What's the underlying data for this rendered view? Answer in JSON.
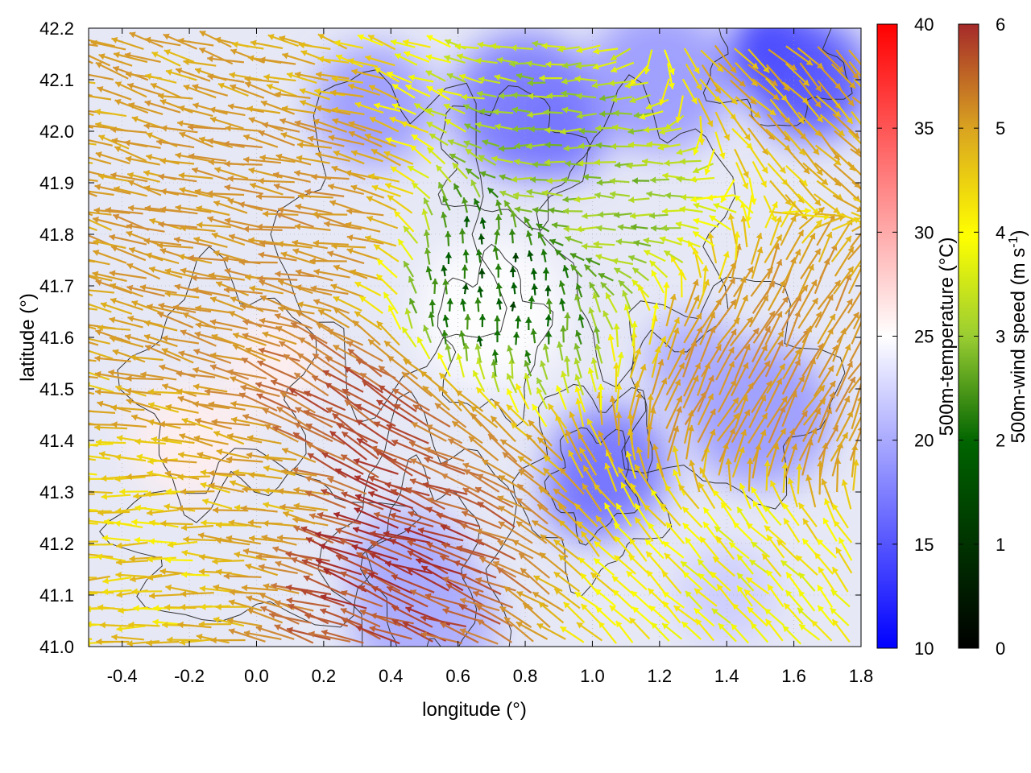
{
  "chart_data": {
    "type": "heatmap",
    "subtype": "temperature field with wind vectors and contours",
    "xlabel": "longitude (°)",
    "ylabel": "latitude (°)",
    "xlim": [
      -0.5,
      1.8
    ],
    "ylim": [
      41.0,
      42.2
    ],
    "xticks": [
      "-0.4",
      "-0.2",
      "0.0",
      "0.2",
      "0.4",
      "0.6",
      "0.8",
      "1.0",
      "1.2",
      "1.4",
      "1.6",
      "1.8"
    ],
    "xtick_values": [
      -0.4,
      -0.2,
      0.0,
      0.2,
      0.4,
      0.6,
      0.8,
      1.0,
      1.2,
      1.4,
      1.6,
      1.8
    ],
    "yticks": [
      "41.0",
      "41.1",
      "41.2",
      "41.3",
      "41.4",
      "41.5",
      "41.6",
      "41.7",
      "41.8",
      "41.9",
      "42.0",
      "42.1",
      "42.2"
    ],
    "ytick_values": [
      41.0,
      41.1,
      41.2,
      41.3,
      41.4,
      41.5,
      41.6,
      41.7,
      41.8,
      41.9,
      42.0,
      42.1,
      42.2
    ],
    "grid": true,
    "temperature_colorbar": {
      "label": "500m-temperature (°C)",
      "range": [
        10,
        40
      ],
      "ticks": [
        "10",
        "15",
        "20",
        "25",
        "30",
        "35",
        "40"
      ],
      "tick_values": [
        10,
        15,
        20,
        25,
        30,
        35,
        40
      ],
      "colors": [
        "#0000ff",
        "#ffffff",
        "#ff0000"
      ]
    },
    "wind_colorbar": {
      "label": "500m-wind speed (m s",
      "label_sup": "-1",
      "label_end": ")",
      "range": [
        0,
        6
      ],
      "ticks": [
        "0",
        "1",
        "2",
        "3",
        "4",
        "5",
        "6"
      ],
      "tick_values": [
        0,
        1,
        2,
        3,
        4,
        5,
        6
      ],
      "colors": [
        "#000000",
        "#006400",
        "#9acd32",
        "#ffff00",
        "#daa520",
        "#cd853f",
        "#a52a2a"
      ]
    },
    "temperature_regions": [
      {
        "lon": 1.55,
        "lat": 42.15,
        "temp": 12
      },
      {
        "lon": 1.65,
        "lat": 42.1,
        "temp": 15
      },
      {
        "lon": 0.8,
        "lat": 42.05,
        "temp": 17
      },
      {
        "lon": 0.9,
        "lat": 42.0,
        "temp": 17
      },
      {
        "lon": 0.35,
        "lat": 42.05,
        "temp": 19
      },
      {
        "lon": 1.2,
        "lat": 42.1,
        "temp": 19
      },
      {
        "lon": 1.0,
        "lat": 41.3,
        "temp": 17
      },
      {
        "lon": 1.05,
        "lat": 41.35,
        "temp": 17
      },
      {
        "lon": 1.5,
        "lat": 41.45,
        "temp": 19
      },
      {
        "lon": 1.3,
        "lat": 41.55,
        "temp": 20
      },
      {
        "lon": 0.45,
        "lat": 41.15,
        "temp": 20
      },
      {
        "lon": 0.5,
        "lat": 41.05,
        "temp": 20
      },
      {
        "lon": 0.05,
        "lat": 41.55,
        "temp": 26
      },
      {
        "lon": -0.2,
        "lat": 41.4,
        "temp": 26
      },
      {
        "lon": 0.7,
        "lat": 41.65,
        "temp": 25
      },
      {
        "lon": 1.4,
        "lat": 41.1,
        "temp": 22
      }
    ],
    "wind_vectors": [
      {
        "lon": -0.3,
        "lat": 41.2,
        "speed": 3.5,
        "dir_deg": 180
      },
      {
        "lon": 0.1,
        "lat": 41.3,
        "speed": 4.0,
        "dir_deg": 170
      },
      {
        "lon": 0.4,
        "lat": 41.2,
        "speed": 5.8,
        "dir_deg": 160
      },
      {
        "lon": 0.3,
        "lat": 41.4,
        "speed": 5.5,
        "dir_deg": 150
      },
      {
        "lon": 0.2,
        "lat": 41.8,
        "speed": 4.5,
        "dir_deg": 170
      },
      {
        "lon": 0.7,
        "lat": 41.7,
        "speed": 1.0,
        "dir_deg": 90
      },
      {
        "lon": 1.0,
        "lat": 41.9,
        "speed": 2.0,
        "dir_deg": 180
      },
      {
        "lon": 1.5,
        "lat": 41.5,
        "speed": 4.5,
        "dir_deg": 60
      },
      {
        "lon": 1.4,
        "lat": 41.1,
        "speed": 3.0,
        "dir_deg": 135
      },
      {
        "lon": 1.6,
        "lat": 42.15,
        "speed": 4.0,
        "dir_deg": 315
      }
    ]
  }
}
